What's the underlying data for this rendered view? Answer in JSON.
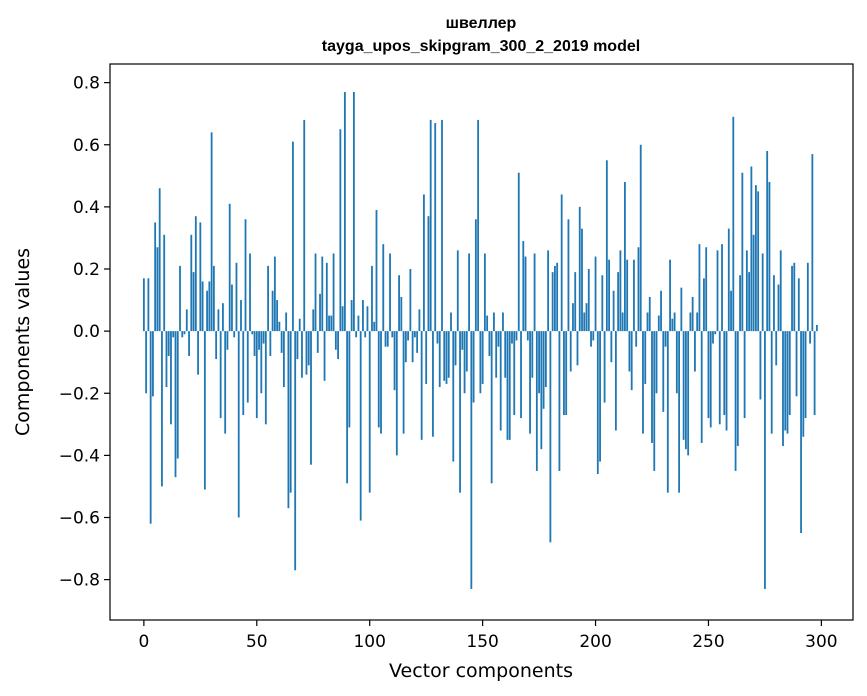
{
  "chart_data": {
    "type": "bar",
    "title": "швеллер",
    "subtitle": "tayga_upos_skipgram_300_2_2019 model",
    "xlabel": "Vector components",
    "ylabel": "Components values",
    "xlim": [
      -15,
      314
    ],
    "ylim": [
      -0.93,
      0.86
    ],
    "xticks": [
      0,
      50,
      100,
      150,
      200,
      250,
      300
    ],
    "xtick_labels": [
      "0",
      "50",
      "100",
      "150",
      "200",
      "250",
      "300"
    ],
    "yticks": [
      -0.8,
      -0.6,
      -0.4,
      -0.2,
      0.0,
      0.2,
      0.4,
      0.6,
      0.8
    ],
    "ytick_labels": [
      "−0.8",
      "−0.6",
      "−0.4",
      "−0.2",
      "0.0",
      "0.2",
      "0.4",
      "0.6",
      "0.8"
    ],
    "bar_color": "#1f77b4",
    "grid": false,
    "values": [
      0.17,
      -0.2,
      0.17,
      -0.62,
      -0.21,
      0.35,
      0.27,
      0.46,
      -0.5,
      0.31,
      -0.18,
      -0.08,
      -0.3,
      -0.02,
      -0.47,
      -0.41,
      0.21,
      -0.02,
      -0.01,
      0.07,
      -0.08,
      0.31,
      0.19,
      0.37,
      -0.14,
      0.35,
      0.16,
      -0.51,
      0.13,
      0.16,
      0.64,
      0.21,
      -0.09,
      0.07,
      -0.28,
      0.09,
      -0.33,
      -0.06,
      0.41,
      0.15,
      -0.02,
      0.22,
      -0.6,
      0.1,
      -0.27,
      0.36,
      -0.23,
      0.25,
      -0.01,
      -0.08,
      -0.28,
      -0.06,
      -0.2,
      -0.04,
      -0.3,
      0.21,
      -0.08,
      0.13,
      0.24,
      0.1,
      0.03,
      -0.07,
      -0.18,
      0.06,
      -0.57,
      -0.52,
      0.61,
      -0.77,
      -0.09,
      0.04,
      -0.15,
      0.68,
      -0.14,
      -0.11,
      -0.43,
      0.07,
      0.25,
      -0.07,
      0.12,
      0.24,
      -0.16,
      0.22,
      0.05,
      0.05,
      0.25,
      -0.06,
      -0.09,
      0.65,
      0.08,
      0.77,
      -0.49,
      -0.31,
      0.1,
      0.77,
      -0.02,
      0.05,
      -0.61,
      0.1,
      -0.02,
      0.08,
      -0.52,
      0.21,
      0.03,
      0.39,
      -0.31,
      -0.33,
      0.28,
      -0.05,
      -0.05,
      0.25,
      -0.02,
      -0.19,
      -0.4,
      0.18,
      0.11,
      -0.33,
      -0.1,
      -0.03,
      0.2,
      -0.1,
      -0.02,
      -0.07,
      0.07,
      -0.35,
      0.44,
      -0.17,
      0.37,
      0.68,
      -0.34,
      0.67,
      -0.04,
      -0.18,
      0.68,
      -0.16,
      -0.17,
      -0.15,
      0.06,
      -0.42,
      -0.11,
      0.26,
      -0.52,
      -0.06,
      -0.2,
      -0.13,
      0.25,
      -0.83,
      -0.23,
      0.36,
      0.68,
      -0.2,
      -0.17,
      0.25,
      0.05,
      -0.08,
      -0.49,
      0.06,
      -0.15,
      -0.05,
      -0.32,
      0.06,
      -0.15,
      -0.35,
      -0.35,
      -0.04,
      -0.27,
      -0.03,
      0.51,
      -0.28,
      0.29,
      0.24,
      -0.03,
      -0.33,
      -0.15,
      0.25,
      -0.45,
      -0.2,
      -0.38,
      -0.25,
      -0.18,
      0.26,
      -0.68,
      0.19,
      0.21,
      0.22,
      -0.45,
      0.44,
      -0.27,
      -0.27,
      0.36,
      -0.13,
      0.09,
      0.19,
      -0.11,
      0.4,
      0.33,
      0.06,
      0.09,
      0.2,
      -0.05,
      -0.03,
      0.24,
      -0.46,
      -0.42,
      0.18,
      -0.23,
      0.55,
      0.23,
      -0.1,
      0.13,
      -0.32,
      0.19,
      0.26,
      0.06,
      0.48,
      0.23,
      -0.13,
      -0.19,
      0.23,
      -0.05,
      0.27,
      0.6,
      -0.33,
      -0.17,
      0.06,
      0.11,
      -0.36,
      -0.45,
      -0.2,
      0.05,
      0.13,
      -0.26,
      -0.05,
      -0.52,
      0.23,
      0.04,
      0.06,
      -0.2,
      -0.52,
      0.14,
      -0.35,
      -0.38,
      -0.4,
      0.06,
      0.11,
      -0.13,
      0.06,
      0.28,
      -0.36,
      0.17,
      0.27,
      -0.28,
      -0.31,
      -0.04,
      -0.01,
      0.26,
      -0.3,
      0.28,
      -0.27,
      -0.32,
      0.33,
      0.13,
      0.69,
      -0.45,
      -0.37,
      0.18,
      0.51,
      -0.28,
      0.26,
      0.19,
      0.53,
      0.31,
      0.47,
      0.45,
      -0.22,
      0.25,
      -0.83,
      0.58,
      0.48,
      -0.33,
      0.18,
      -0.11,
      0.15,
      0.26,
      -0.37,
      -0.32,
      -0.33,
      -0.27,
      0.21,
      0.22,
      -0.21,
      0.17,
      -0.65,
      -0.34,
      -0.28,
      0.22,
      -0.04,
      0.57,
      -0.27,
      0.02
    ]
  }
}
